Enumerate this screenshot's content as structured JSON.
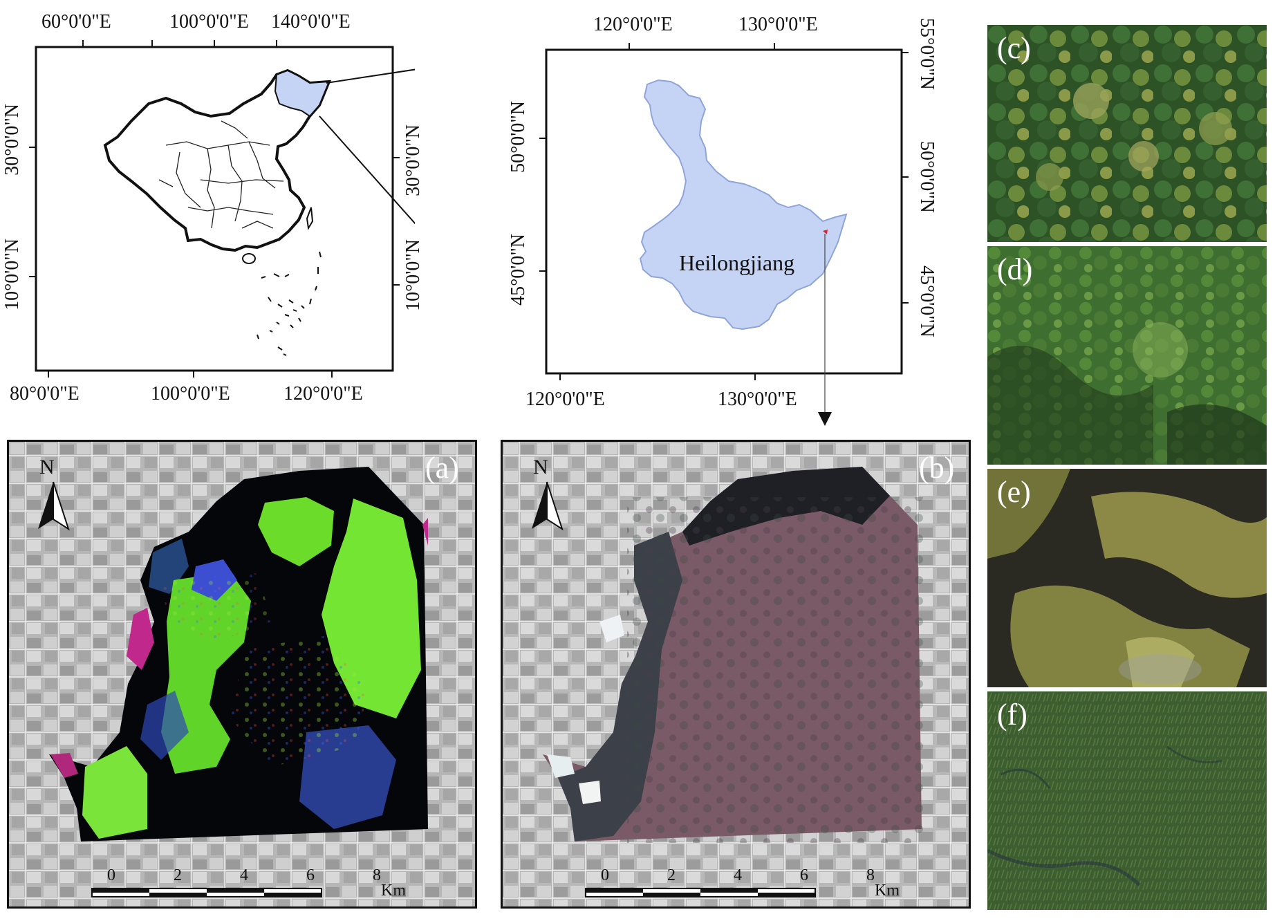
{
  "map_china": {
    "top_axis_labels": [
      "60°0'0\"E",
      "100°0'0\"E",
      "140°0'0\"E"
    ],
    "bottom_axis_labels": [
      "80°0'0\"E",
      "100°0'0\"E",
      "120°0'0\"E"
    ],
    "left_axis_labels": [
      "30°0'0\"N",
      "10°0'0\"N"
    ],
    "right_axis_labels": [
      "30°0'0\"N",
      "10°0'0\"N"
    ],
    "highlight_color": "#c5d3f5"
  },
  "map_heilongjiang": {
    "region_label": "Heilongjiang",
    "top_axis_labels": [
      "120°0'0\"E",
      "130°0'0\"E"
    ],
    "bottom_axis_labels": [
      "120°0'0\"E",
      "130°0'0\"E"
    ],
    "left_axis_labels": [
      "50°0'0\"N",
      "45°0'0\"N"
    ],
    "right_axis_labels": [
      "55°0'0\"N",
      "50°0'0\"N",
      "45°0'0\"N"
    ],
    "region_color": "#c5d3f5",
    "site_marker_color": "#e0202a"
  },
  "panel_a": {
    "label": "(a)",
    "north_label": "N",
    "scale_ticks": [
      "0",
      "2",
      "4",
      "6",
      "8"
    ],
    "scale_unit": "Km"
  },
  "panel_b": {
    "label": "(b)",
    "north_label": "N",
    "scale_ticks": [
      "0",
      "2",
      "4",
      "6",
      "8"
    ],
    "scale_unit": "Km"
  },
  "photos": [
    {
      "label": "(c)",
      "vegetation": "forest canopy"
    },
    {
      "label": "(d)",
      "vegetation": "shrub"
    },
    {
      "label": "(e)",
      "vegetation": "wet meadow"
    },
    {
      "label": "(f)",
      "vegetation": "marsh grass"
    }
  ]
}
